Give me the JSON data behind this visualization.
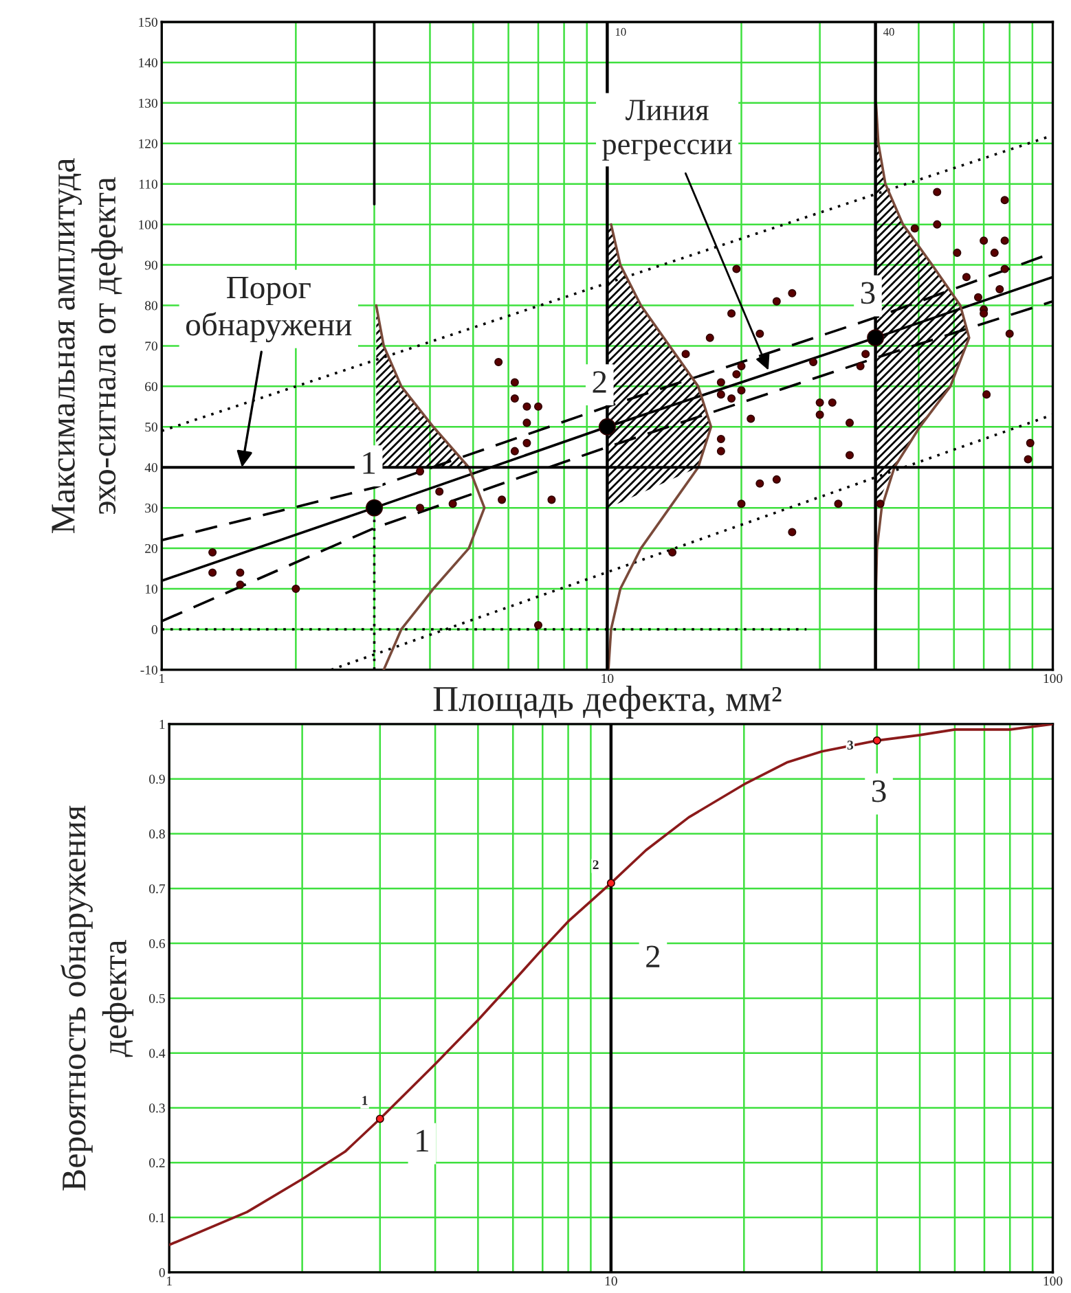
{
  "chart_data": [
    {
      "type": "scatter",
      "xlabel": "Площадь дефекта, мм²",
      "ylabel": "Максимальная амплитуда\nэхо-сигнала от дефекта",
      "log": "x",
      "xlim": [
        1,
        100
      ],
      "ylim": [
        -10,
        150
      ],
      "xticks": [
        1,
        {
          "value": 2,
          "label": null
        },
        {
          "value": 3,
          "label": null
        },
        {
          "value": 4,
          "label": null
        },
        {
          "value": 5,
          "label": null
        },
        {
          "value": 6,
          "label": null
        },
        {
          "value": 7,
          "label": null
        },
        {
          "value": 8,
          "label": null
        },
        {
          "value": 9,
          "label": null
        },
        10,
        {
          "value": 20,
          "label": null
        },
        {
          "value": 30,
          "label": null
        },
        {
          "value": 40,
          "label": null
        },
        {
          "value": 50,
          "label": null
        },
        {
          "value": 60,
          "label": null
        },
        {
          "value": 70,
          "label": null
        },
        {
          "value": 80,
          "label": null
        },
        {
          "value": 90,
          "label": null
        },
        100
      ],
      "yticks": [
        -10,
        0,
        10,
        20,
        30,
        40,
        50,
        60,
        70,
        80,
        90,
        100,
        110,
        120,
        130,
        140,
        150
      ],
      "grid": true,
      "series": [
        {
          "color": "#5a0000",
          "marker": "circle",
          "x": [
            1.3,
            1.3,
            1.5,
            1.5,
            2,
            3.8,
            4.2,
            3.8,
            4.5,
            5.7,
            6.2,
            6.2,
            6.6,
            7,
            6.6,
            6.6,
            6.2,
            5.8,
            7.5,
            7,
            19.5,
            26,
            24,
            19,
            17,
            22,
            15,
            20,
            18,
            19.5,
            18,
            19,
            20,
            29,
            38,
            37,
            21,
            18,
            18,
            30,
            32,
            30,
            35,
            35,
            22,
            24,
            20,
            33,
            26,
            14,
            41,
            55,
            78,
            55,
            49,
            70,
            78,
            61,
            74,
            78,
            64,
            68,
            70,
            70,
            76,
            80,
            71,
            89,
            88
          ],
          "values": [
            19,
            14,
            14,
            11,
            10,
            39,
            34,
            30,
            31,
            66,
            61,
            57,
            55,
            55,
            51,
            46,
            44,
            32,
            32,
            1,
            89,
            83,
            81,
            78,
            72,
            73,
            68,
            65,
            61,
            63,
            58,
            57,
            59,
            66,
            68,
            65,
            52,
            47,
            44,
            56,
            56,
            53,
            51,
            43,
            36,
            37,
            31,
            31,
            24,
            19,
            31,
            108,
            106,
            100,
            99,
            96,
            96,
            93,
            93,
            89,
            87,
            82,
            79,
            78,
            84,
            73,
            58,
            46,
            42
          ]
        },
        {
          "color": "#000000",
          "marker": "circle",
          "x": [
            3,
            10,
            40
          ],
          "values": [
            30,
            50,
            72
          ]
        },
        {
          "type": "line",
          "color": "#000000",
          "line_style": "solid",
          "x": [
            1,
            3,
            10,
            40,
            100
          ],
          "values": [
            12,
            30,
            50,
            72,
            87
          ]
        },
        {
          "type": "line",
          "color": "#000000",
          "line_style": "dashed",
          "x": [
            1,
            3,
            10,
            40,
            100
          ],
          "values": [
            22,
            35,
            55,
            77,
            93
          ]
        },
        {
          "type": "line",
          "color": "#000000",
          "line_style": "dashed",
          "x": [
            1,
            3,
            10,
            40,
            100
          ],
          "values": [
            2,
            25,
            45,
            67,
            81
          ]
        },
        {
          "type": "line",
          "color": "#000000",
          "line_style": "dotted",
          "x": [
            1,
            100
          ],
          "values": [
            49,
            122
          ]
        },
        {
          "type": "line",
          "color": "#000000",
          "line_style": "dotted",
          "x": [
            2.4,
            100
          ],
          "values": [
            -10,
            53
          ]
        },
        {
          "type": "line",
          "color": "#000000",
          "line_style": "solid",
          "x": [
            3,
            3
          ],
          "values": [
            105,
            150
          ]
        },
        {
          "type": "line",
          "color": "#000000",
          "line_style": "dotted",
          "x": [
            3,
            3
          ],
          "values": [
            -10,
            30
          ]
        },
        {
          "type": "line",
          "color": "#000000",
          "line_style": "dotted",
          "x": [
            1,
            28
          ],
          "values": [
            0,
            0
          ]
        },
        {
          "type": "line",
          "color": "#7a4a3a",
          "line_style": "solid",
          "x": [
            3.15,
            3.45,
            4.07,
            4.89,
            5.3,
            4.89,
            4.07,
            3.45,
            3.15,
            3.03
          ],
          "values": [
            -10,
            0,
            10,
            20,
            30,
            40,
            50,
            60,
            70,
            80
          ]
        },
        {
          "type": "line",
          "color": "#7a4a3a",
          "line_style": "solid",
          "x": [
            10.06,
            10.2,
            10.7,
            11.9,
            13.8,
            16.0,
            17.1,
            16.0,
            13.8,
            11.9,
            10.7,
            10.2
          ],
          "values": [
            -10,
            0,
            10,
            20,
            30,
            40,
            50,
            60,
            70,
            80,
            90,
            100
          ]
        },
        {
          "type": "line",
          "color": "#7a4a3a",
          "line_style": "solid",
          "x": [
            40,
            40,
            40.1,
            40.3,
            41.3,
            44.1,
            50.3,
            58.9,
            64.9,
            62.0,
            53.6,
            46.1,
            42.1,
            40.6,
            40.1
          ],
          "values": [
            -10,
            0,
            10,
            20,
            30,
            40,
            50,
            60,
            72,
            80,
            90,
            100,
            110,
            120,
            130
          ]
        }
      ],
      "ref_lines": [
        {
          "axis": "x",
          "value": 10,
          "label": "10"
        },
        {
          "axis": "x",
          "value": 40,
          "label": "40"
        },
        {
          "axis": "y",
          "value": 40,
          "label": "Порог\nобнаружени"
        }
      ],
      "annotations": [
        {
          "text": "1",
          "x": 3,
          "y": 30
        },
        {
          "text": "2",
          "x": 10,
          "y": 50
        },
        {
          "text": "3",
          "x": 40,
          "y": 72
        },
        {
          "text": "Линия\nрегрессии",
          "x": 23,
          "y": 64
        }
      ]
    },
    {
      "type": "line",
      "ylabel": "Вероятность обнаружения\nдефекта",
      "log": "x",
      "xlim": [
        1,
        100
      ],
      "ylim": [
        0,
        1
      ],
      "xticks": [
        1,
        {
          "value": 2,
          "label": null
        },
        {
          "value": 3,
          "label": null
        },
        {
          "value": 4,
          "label": null
        },
        {
          "value": 5,
          "label": null
        },
        {
          "value": 6,
          "label": null
        },
        {
          "value": 7,
          "label": null
        },
        {
          "value": 8,
          "label": null
        },
        {
          "value": 9,
          "label": null
        },
        10,
        {
          "value": 20,
          "label": null
        },
        {
          "value": 30,
          "label": null
        },
        {
          "value": 40,
          "label": null
        },
        {
          "value": 50,
          "label": null
        },
        {
          "value": 60,
          "label": null
        },
        {
          "value": 70,
          "label": null
        },
        {
          "value": 80,
          "label": null
        },
        {
          "value": 90,
          "label": null
        },
        100
      ],
      "yticks": [
        0,
        0.1,
        0.2,
        0.3,
        0.4,
        0.5,
        0.6,
        0.7,
        0.8,
        0.9,
        1
      ],
      "grid": true,
      "series": [
        {
          "color": "#8b1a1a",
          "line_style": "solid",
          "x": [
            1,
            1.5,
            2,
            2.5,
            3,
            4,
            5,
            6,
            7,
            8,
            10,
            12,
            15,
            20,
            25,
            30,
            40,
            50,
            60,
            80,
            100
          ],
          "values": [
            0.05,
            0.11,
            0.17,
            0.22,
            0.28,
            0.38,
            0.46,
            0.53,
            0.59,
            0.64,
            0.71,
            0.77,
            0.83,
            0.89,
            0.93,
            0.95,
            0.97,
            0.98,
            0.99,
            0.99,
            1.0
          ]
        },
        {
          "type": "scatter",
          "color": "#ff2020",
          "marker": "circle",
          "x": [
            3,
            10,
            40
          ],
          "values": [
            0.28,
            0.71,
            0.97
          ]
        }
      ],
      "ref_lines": [
        {
          "axis": "x",
          "value": 10,
          "label": null
        }
      ],
      "annotations": [
        {
          "text": "1",
          "x": 3,
          "y": 0.28
        },
        {
          "text": "2",
          "x": 10,
          "y": 0.71
        },
        {
          "text": "3",
          "x": 40,
          "y": 0.97
        },
        {
          "text": "1",
          "x": 3,
          "y": 0.28
        },
        {
          "text": "2",
          "x": 10,
          "y": 0.71
        },
        {
          "text": "3",
          "x": 40,
          "y": 0.97
        }
      ]
    }
  ]
}
